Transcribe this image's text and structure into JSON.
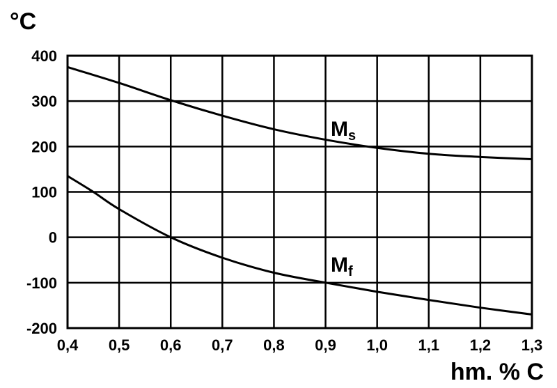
{
  "chart_data": {
    "type": "line",
    "ylabel": "°C",
    "xlabel": "hm. % C",
    "xlim": [
      0.4,
      1.3
    ],
    "ylim": [
      -200,
      400
    ],
    "grid": true,
    "x_ticks": [
      "0,4",
      "0,5",
      "0,6",
      "0,7",
      "0,8",
      "0,9",
      "1,0",
      "1,1",
      "1,2",
      "1,3"
    ],
    "y_ticks": [
      "400",
      "300",
      "200",
      "100",
      "0",
      "-100",
      "-200"
    ],
    "series": [
      {
        "name": "Ms",
        "label_main": "M",
        "label_sub": "s",
        "x": [
          0.4,
          0.5,
          0.6,
          0.7,
          0.8,
          0.9,
          1.0,
          1.1,
          1.2,
          1.3
        ],
        "values": [
          375,
          340,
          302,
          268,
          238,
          215,
          197,
          184,
          177,
          172
        ]
      },
      {
        "name": "Mf",
        "label_main": "M",
        "label_sub": "f",
        "x": [
          0.4,
          0.45,
          0.5,
          0.6,
          0.7,
          0.8,
          0.9,
          1.0,
          1.1,
          1.2,
          1.3
        ],
        "values": [
          135,
          100,
          62,
          0,
          -45,
          -78,
          -100,
          -120,
          -138,
          -155,
          -170
        ]
      }
    ]
  }
}
